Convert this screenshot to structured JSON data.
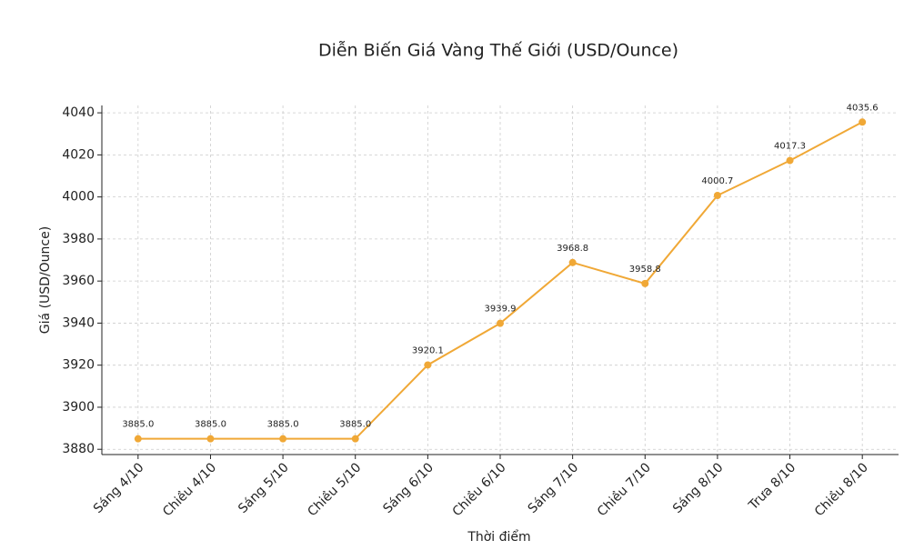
{
  "chart_data": {
    "type": "line",
    "title": "Diễn Biến Giá Vàng Thế Giới (USD/Ounce)",
    "x_label": "Thời điểm",
    "y_label": "Giá (USD/Ounce)",
    "categories": [
      "Sáng 4/10",
      "Chiều 4/10",
      "Sáng 5/10",
      "Chiều 5/10",
      "Sáng 6/10",
      "Chiều 6/10",
      "Sáng 7/10",
      "Chiều 7/10",
      "Sáng 8/10",
      "Trưa 8/10",
      "Chiều 8/10"
    ],
    "values": [
      3885,
      3885,
      3885,
      3885,
      3920.1,
      3939.9,
      3968.8,
      3958.8,
      4000.7,
      4017.3,
      4035.6
    ],
    "value_labels": [
      "3885.0",
      "3885.0",
      "3885.0",
      "3885.0",
      "3920.1",
      "3939.9",
      "3968.8",
      "3958.8",
      "4000.7",
      "4017.3",
      "4035.6"
    ],
    "color": "#f0a836",
    "ylim": [
      3877.5,
      4043.5
    ],
    "yticks": [
      3880,
      3900,
      3920,
      3940,
      3960,
      3980,
      4000,
      4020,
      4040
    ],
    "grid": true
  }
}
